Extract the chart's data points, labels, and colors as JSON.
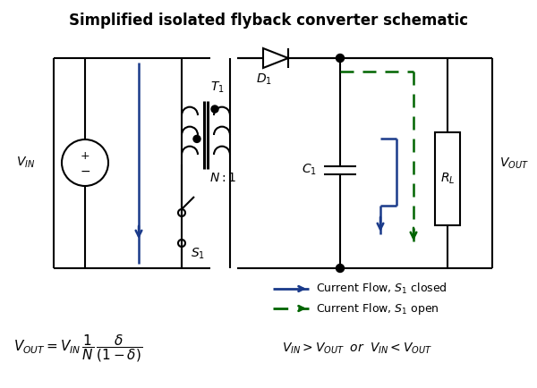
{
  "title": "Simplified isolated flyback converter schematic",
  "title_fontsize": 12,
  "bg_color": "#ffffff",
  "line_color": "#000000",
  "blue_color": "#1a3a8a",
  "green_color": "#006400",
  "fig_width": 6.0,
  "fig_height": 4.34,
  "dpi": 100
}
